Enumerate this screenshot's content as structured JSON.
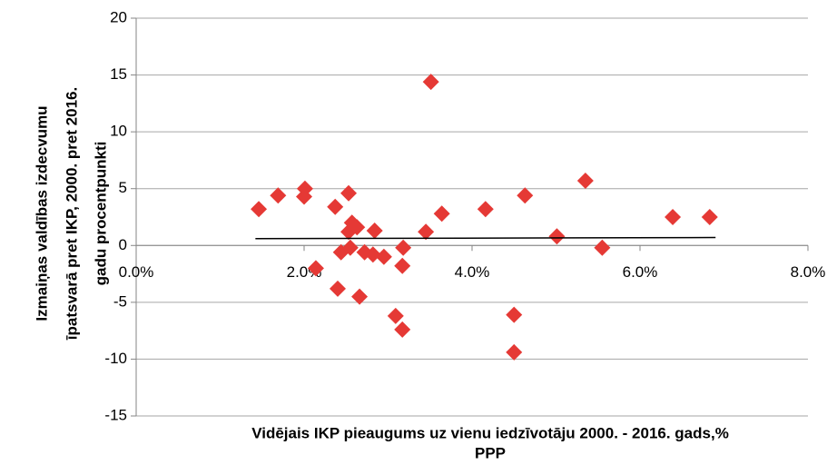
{
  "chart_data": {
    "type": "scatter",
    "x_label": [
      "Vidējais IKP pieaugums uz vienu iedzīvotāju 2000. - 2016. gads,%",
      "PPP"
    ],
    "y_label": [
      "Izmaiņas valdības izdecvumu",
      "īpatsvarā pret IKP, 2000. pret 2016.",
      "gadu procentpunkti"
    ],
    "series": [
      {
        "color": "#e53935",
        "x": [
          1.46,
          1.69,
          2.01,
          2.0,
          2.14,
          2.37,
          2.53,
          2.44,
          2.4,
          2.57,
          2.53,
          2.63,
          2.55,
          2.66,
          2.84,
          2.72,
          2.82,
          2.95,
          3.18,
          3.17,
          3.09,
          3.17,
          3.45,
          3.51,
          3.64,
          4.16,
          4.5,
          4.5,
          4.63,
          5.01,
          5.35,
          5.55,
          6.39,
          6.83
        ],
        "values": [
          3.2,
          4.4,
          5.0,
          4.3,
          -2.0,
          3.4,
          4.6,
          -0.6,
          -3.8,
          2.0,
          1.2,
          1.6,
          -0.2,
          -4.5,
          1.3,
          -0.6,
          -0.8,
          -1.0,
          -0.2,
          -1.8,
          -6.2,
          -7.4,
          1.2,
          14.4,
          2.8,
          3.2,
          -6.1,
          -9.4,
          4.4,
          0.8,
          5.7,
          -0.2,
          2.5,
          2.5
        ]
      }
    ],
    "trendline": {
      "color": "#000000",
      "x": [
        1.42,
        6.9
      ],
      "values": [
        0.6,
        0.7
      ]
    },
    "xlim": [
      0,
      8
    ],
    "xticks": [
      {
        "value": 0,
        "label": "0.0%"
      },
      {
        "value": 2,
        "label": "2.0%"
      },
      {
        "value": 4,
        "label": "4.0%"
      },
      {
        "value": 6,
        "label": "6.0%"
      },
      {
        "value": 8,
        "label": "8.0%"
      }
    ],
    "ylim": [
      -15,
      20
    ],
    "yticks": [
      -15,
      -10,
      -5,
      0,
      5,
      10,
      15,
      20
    ],
    "grid": true
  }
}
